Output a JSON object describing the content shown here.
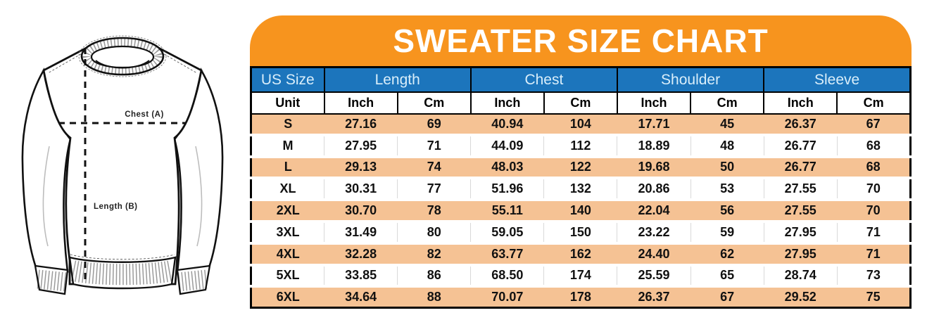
{
  "title": "SWEATER SIZE CHART",
  "diagram": {
    "chest_label": "Chest (A)",
    "length_label": "Length (B)"
  },
  "colors": {
    "banner_orange": "#F7941E",
    "header_blue": "#1C75BC",
    "row_peach": "#F5C294",
    "header_text_light": "#D9EEFA"
  },
  "table": {
    "group_headers": [
      {
        "label": "US Size",
        "span": 1
      },
      {
        "label": "Length",
        "span": 2
      },
      {
        "label": "Chest",
        "span": 2
      },
      {
        "label": "Shoulder",
        "span": 2
      },
      {
        "label": "Sleeve",
        "span": 2
      }
    ],
    "unit_row": [
      "Unit",
      "Inch",
      "Cm",
      "Inch",
      "Cm",
      "Inch",
      "Cm",
      "Inch",
      "Cm"
    ],
    "rows": [
      {
        "size": "S",
        "values": [
          "27.16",
          "69",
          "40.94",
          "104",
          "17.71",
          "45",
          "26.37",
          "67"
        ]
      },
      {
        "size": "M",
        "values": [
          "27.95",
          "71",
          "44.09",
          "112",
          "18.89",
          "48",
          "26.77",
          "68"
        ]
      },
      {
        "size": "L",
        "values": [
          "29.13",
          "74",
          "48.03",
          "122",
          "19.68",
          "50",
          "26.77",
          "68"
        ]
      },
      {
        "size": "XL",
        "values": [
          "30.31",
          "77",
          "51.96",
          "132",
          "20.86",
          "53",
          "27.55",
          "70"
        ]
      },
      {
        "size": "2XL",
        "values": [
          "30.70",
          "78",
          "55.11",
          "140",
          "22.04",
          "56",
          "27.55",
          "70"
        ]
      },
      {
        "size": "3XL",
        "values": [
          "31.49",
          "80",
          "59.05",
          "150",
          "23.22",
          "59",
          "27.95",
          "71"
        ]
      },
      {
        "size": "4XL",
        "values": [
          "32.28",
          "82",
          "63.77",
          "162",
          "24.40",
          "62",
          "27.95",
          "71"
        ]
      },
      {
        "size": "5XL",
        "values": [
          "33.85",
          "86",
          "68.50",
          "174",
          "25.59",
          "65",
          "28.74",
          "73"
        ]
      },
      {
        "size": "6XL",
        "values": [
          "34.64",
          "88",
          "70.07",
          "178",
          "26.37",
          "67",
          "29.52",
          "75"
        ]
      }
    ]
  }
}
